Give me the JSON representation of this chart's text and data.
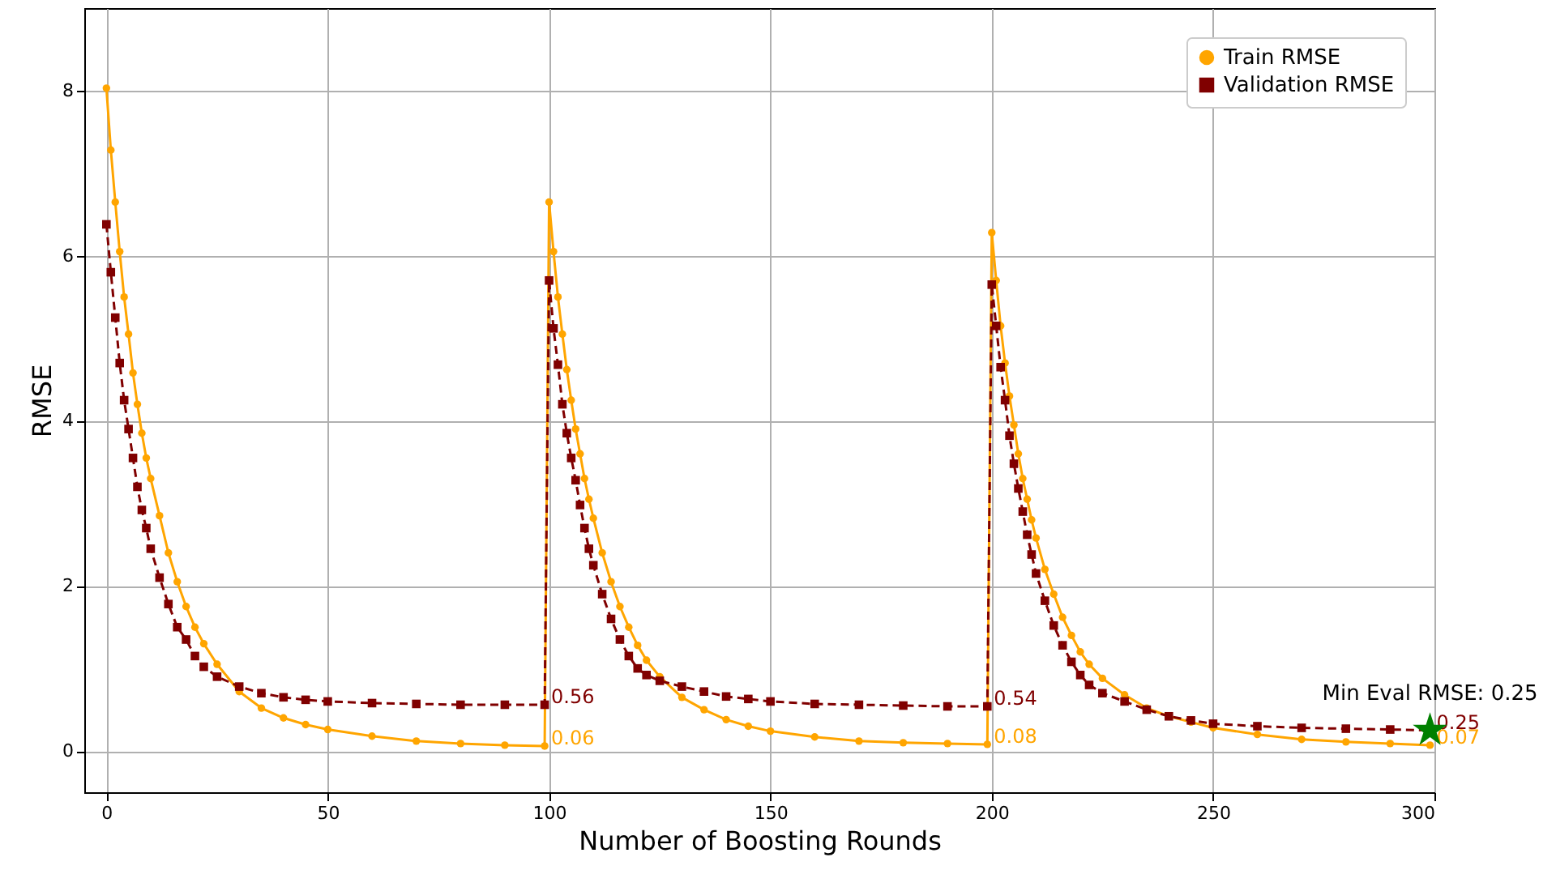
{
  "chart_data": {
    "type": "line",
    "xlabel": "Number of Boosting Rounds",
    "ylabel": "RMSE",
    "x": [
      0,
      1,
      2,
      3,
      4,
      5,
      6,
      7,
      8,
      9,
      10,
      12,
      14,
      16,
      18,
      20,
      22,
      25,
      30,
      35,
      40,
      45,
      50,
      60,
      70,
      80,
      90,
      99,
      100,
      101,
      102,
      103,
      104,
      105,
      106,
      107,
      108,
      109,
      110,
      112,
      114,
      116,
      118,
      120,
      122,
      125,
      130,
      135,
      140,
      145,
      150,
      160,
      170,
      180,
      190,
      199,
      200,
      201,
      202,
      203,
      204,
      205,
      206,
      207,
      208,
      209,
      210,
      212,
      214,
      216,
      218,
      220,
      222,
      225,
      230,
      235,
      240,
      245,
      250,
      260,
      270,
      280,
      290,
      299
    ],
    "xlim": [
      -5,
      300
    ],
    "xticks": [
      0,
      50,
      100,
      150,
      200,
      250,
      300
    ],
    "ylim": [
      -0.5,
      9
    ],
    "yticks": [
      0,
      2,
      4,
      6,
      8
    ],
    "grid": true,
    "legend": "top right",
    "series": [
      {
        "name": "Train RMSE",
        "color": "#ffa500",
        "marker": "circle",
        "line_style": "solid",
        "values": [
          8.03,
          7.28,
          6.65,
          6.05,
          5.5,
          5.05,
          4.58,
          4.2,
          3.85,
          3.55,
          3.3,
          2.85,
          2.4,
          2.05,
          1.75,
          1.5,
          1.3,
          1.05,
          0.72,
          0.52,
          0.4,
          0.32,
          0.26,
          0.18,
          0.12,
          0.09,
          0.07,
          0.06,
          6.65,
          6.05,
          5.5,
          5.05,
          4.62,
          4.25,
          3.9,
          3.6,
          3.3,
          3.05,
          2.82,
          2.4,
          2.05,
          1.75,
          1.5,
          1.28,
          1.1,
          0.9,
          0.65,
          0.5,
          0.38,
          0.3,
          0.24,
          0.17,
          0.12,
          0.1,
          0.09,
          0.08,
          6.28,
          5.7,
          5.15,
          4.7,
          4.3,
          3.95,
          3.6,
          3.3,
          3.05,
          2.8,
          2.58,
          2.2,
          1.9,
          1.62,
          1.4,
          1.2,
          1.05,
          0.88,
          0.68,
          0.52,
          0.42,
          0.35,
          0.28,
          0.2,
          0.14,
          0.11,
          0.09,
          0.07
        ],
        "value_labels": [
          null,
          null,
          null,
          null,
          null,
          null,
          null,
          null,
          null,
          null,
          null,
          null,
          null,
          null,
          null,
          null,
          null,
          null,
          null,
          null,
          null,
          null,
          null,
          null,
          null,
          null,
          null,
          "0.06",
          null,
          null,
          null,
          null,
          null,
          null,
          null,
          null,
          null,
          null,
          null,
          null,
          null,
          null,
          null,
          null,
          null,
          null,
          null,
          null,
          null,
          null,
          null,
          null,
          null,
          null,
          null,
          "0.08",
          null,
          null,
          null,
          null,
          null,
          null,
          null,
          null,
          null,
          null,
          null,
          null,
          null,
          null,
          null,
          null,
          null,
          null,
          null,
          null,
          null,
          null,
          null,
          null,
          null,
          null,
          null,
          "0.07"
        ]
      },
      {
        "name": "Validation RMSE",
        "color": "#800000",
        "marker": "square",
        "line_style": "dashed",
        "values": [
          6.38,
          5.8,
          5.25,
          4.7,
          4.25,
          3.9,
          3.55,
          3.2,
          2.92,
          2.7,
          2.45,
          2.1,
          1.78,
          1.5,
          1.35,
          1.15,
          1.02,
          0.9,
          0.78,
          0.7,
          0.65,
          0.62,
          0.6,
          0.58,
          0.57,
          0.56,
          0.56,
          0.56,
          5.7,
          5.12,
          4.68,
          4.2,
          3.85,
          3.55,
          3.28,
          2.98,
          2.7,
          2.45,
          2.25,
          1.9,
          1.6,
          1.35,
          1.15,
          1.0,
          0.92,
          0.85,
          0.78,
          0.72,
          0.66,
          0.63,
          0.6,
          0.57,
          0.56,
          0.55,
          0.54,
          0.54,
          5.65,
          5.15,
          4.65,
          4.25,
          3.82,
          3.48,
          3.18,
          2.9,
          2.62,
          2.38,
          2.15,
          1.82,
          1.52,
          1.28,
          1.08,
          0.92,
          0.8,
          0.7,
          0.6,
          0.5,
          0.42,
          0.37,
          0.33,
          0.3,
          0.28,
          0.27,
          0.26,
          0.25
        ],
        "value_labels": [
          null,
          null,
          null,
          null,
          null,
          null,
          null,
          null,
          null,
          null,
          null,
          null,
          null,
          null,
          null,
          null,
          null,
          null,
          null,
          null,
          null,
          null,
          null,
          null,
          null,
          null,
          null,
          "0.56",
          null,
          null,
          null,
          null,
          null,
          null,
          null,
          null,
          null,
          null,
          null,
          null,
          null,
          null,
          null,
          null,
          null,
          null,
          null,
          null,
          null,
          null,
          null,
          null,
          null,
          null,
          null,
          "0.54",
          null,
          null,
          null,
          null,
          null,
          null,
          null,
          null,
          null,
          null,
          null,
          null,
          null,
          null,
          null,
          null,
          null,
          null,
          null,
          null,
          null,
          null,
          null,
          null,
          null,
          null,
          null,
          "0.25"
        ]
      },
      {
        "type": "scatter",
        "color": "#008000",
        "marker": "star",
        "x": [
          299
        ],
        "values": [
          0.25
        ]
      }
    ],
    "annotations": [
      {
        "text": "Min Eval RMSE: 0.25",
        "x": 299,
        "y": 0.25
      }
    ]
  }
}
